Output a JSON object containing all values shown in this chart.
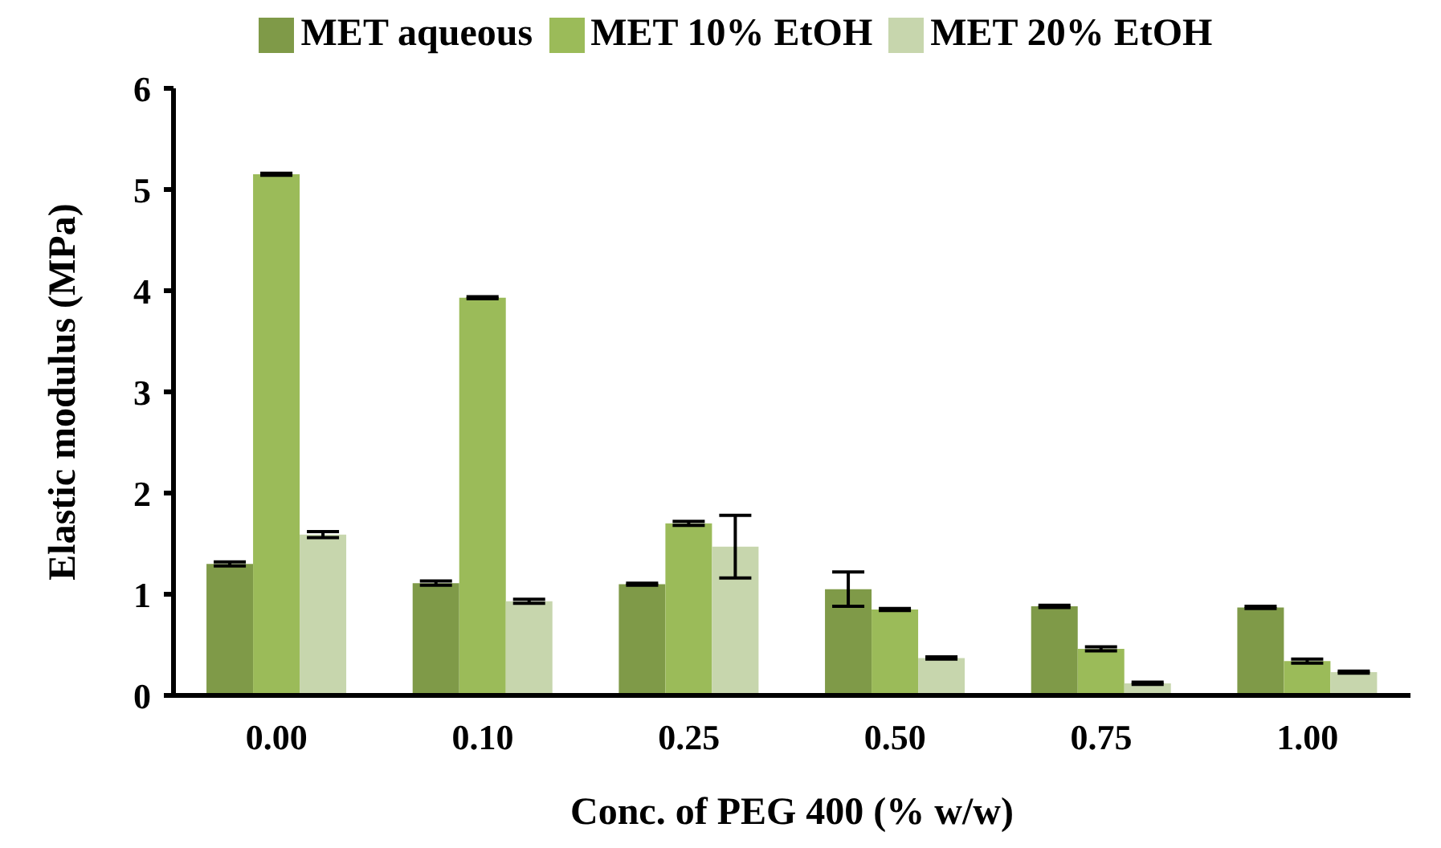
{
  "chart_data": {
    "type": "bar",
    "xlabel": "Conc. of PEG 400 (% w/w)",
    "ylabel": "Elastic modulus (MPa)",
    "categories": [
      "0.00",
      "0.10",
      "0.25",
      "0.50",
      "0.75",
      "1.00"
    ],
    "series": [
      {
        "name": "MET aqueous",
        "color": "#7f9a48",
        "values": [
          1.3,
          1.11,
          1.1,
          1.05,
          0.88,
          0.87
        ],
        "errors": [
          0.02,
          0.02,
          0.01,
          0.17,
          0.01,
          0.01
        ]
      },
      {
        "name": "MET 10% EtOH",
        "color": "#9bbb59",
        "values": [
          5.15,
          3.93,
          1.7,
          0.85,
          0.46,
          0.34
        ],
        "errors": [
          0.01,
          0.01,
          0.02,
          0.01,
          0.02,
          0.02
        ]
      },
      {
        "name": "MET 20% EtOH",
        "color": "#c7d6ad",
        "values": [
          1.59,
          0.93,
          1.47,
          0.37,
          0.12,
          0.23
        ],
        "errors": [
          0.03,
          0.02,
          0.31,
          0.01,
          0.01,
          0.01
        ]
      }
    ],
    "ylim": [
      0,
      6
    ],
    "yticks": [
      0,
      1,
      2,
      3,
      4,
      5,
      6
    ],
    "grid": false,
    "legend": "top"
  }
}
